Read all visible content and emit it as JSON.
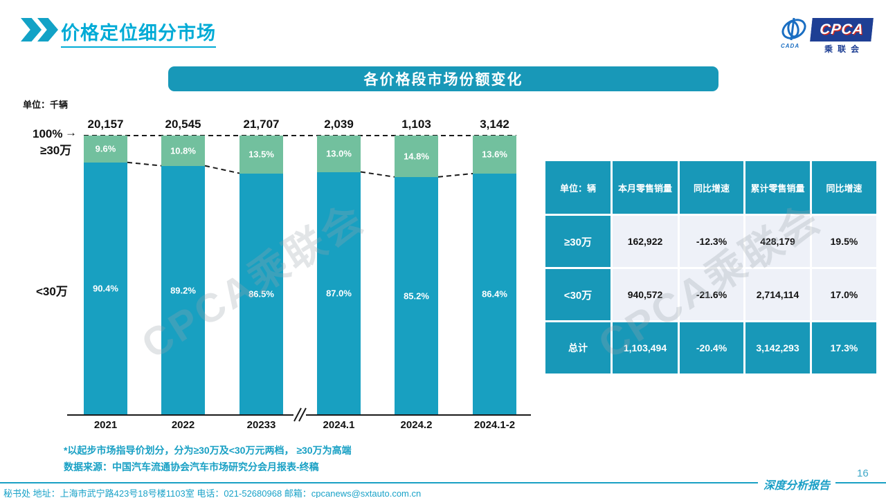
{
  "page": {
    "title": "价格定位细分市场",
    "page_number": "16",
    "report_label": "深度分析报告",
    "footer": "秘书处  地址：上海市武宁路423号18号楼1103室  电话：021-52680968   邮箱：cpcanews@sxtauto.com.cn",
    "watermark": "CPCA乘联会"
  },
  "logo": {
    "cpca": "CPCA",
    "sub": "乘联会",
    "cada": "CADA"
  },
  "banner": {
    "title": "各价格段市场份额变化"
  },
  "chart_data": {
    "type": "bar",
    "stacked": true,
    "title": "各价格段市场份额变化",
    "unit_note": "单位：千辆",
    "y_top_label": "100%",
    "arrow": "→",
    "left_axis_labels": {
      "top": "≥30万",
      "bottom": "<30万"
    },
    "categories": [
      "2021",
      "2022",
      "20233",
      "2024.1",
      "2024.2",
      "2024.1-2"
    ],
    "totals": [
      "20,157",
      "20,545",
      "21,707",
      "2,039",
      "1,103",
      "3,142"
    ],
    "series": [
      {
        "name": "≥30万",
        "color": "#72c09e",
        "values": [
          9.6,
          10.8,
          13.5,
          13.0,
          14.8,
          13.6
        ]
      },
      {
        "name": "<30万",
        "color": "#18a0c1",
        "values": [
          90.4,
          89.2,
          86.5,
          87.0,
          85.2,
          86.4
        ]
      }
    ],
    "value_suffix": "%",
    "ylim": [
      0,
      100
    ],
    "grid": false,
    "axis_break_after_index": 2
  },
  "table": {
    "headers": [
      "单位：辆",
      "本月零售销量",
      "同比增速",
      "累计零售销量",
      "同比增速"
    ],
    "rows": [
      {
        "label": "≥30万",
        "cells": [
          "162,922",
          "-12.3%",
          "428,179",
          "19.5%"
        ],
        "total": false
      },
      {
        "label": "<30万",
        "cells": [
          "940,572",
          "-21.6%",
          "2,714,114",
          "17.0%"
        ],
        "total": false
      },
      {
        "label": "总计",
        "cells": [
          "1,103,494",
          "-20.4%",
          "3,142,293",
          "17.3%"
        ],
        "total": true
      }
    ]
  },
  "notes": {
    "line1": "*以起步市场指导价划分，分为≥30万及<30万元两档，  ≥30万为高端",
    "line2": "数据来源：中国汽车流通协会汽车市场研究分会月报表-终稿"
  },
  "colors": {
    "teal_bar": "#18a0c1",
    "green_bar": "#72c09e",
    "banner": "#1898b8",
    "title": "#00abd6",
    "note": "#18a0c4",
    "light_cell": "#eef1f8",
    "navy_logo": "#1e3f94"
  }
}
